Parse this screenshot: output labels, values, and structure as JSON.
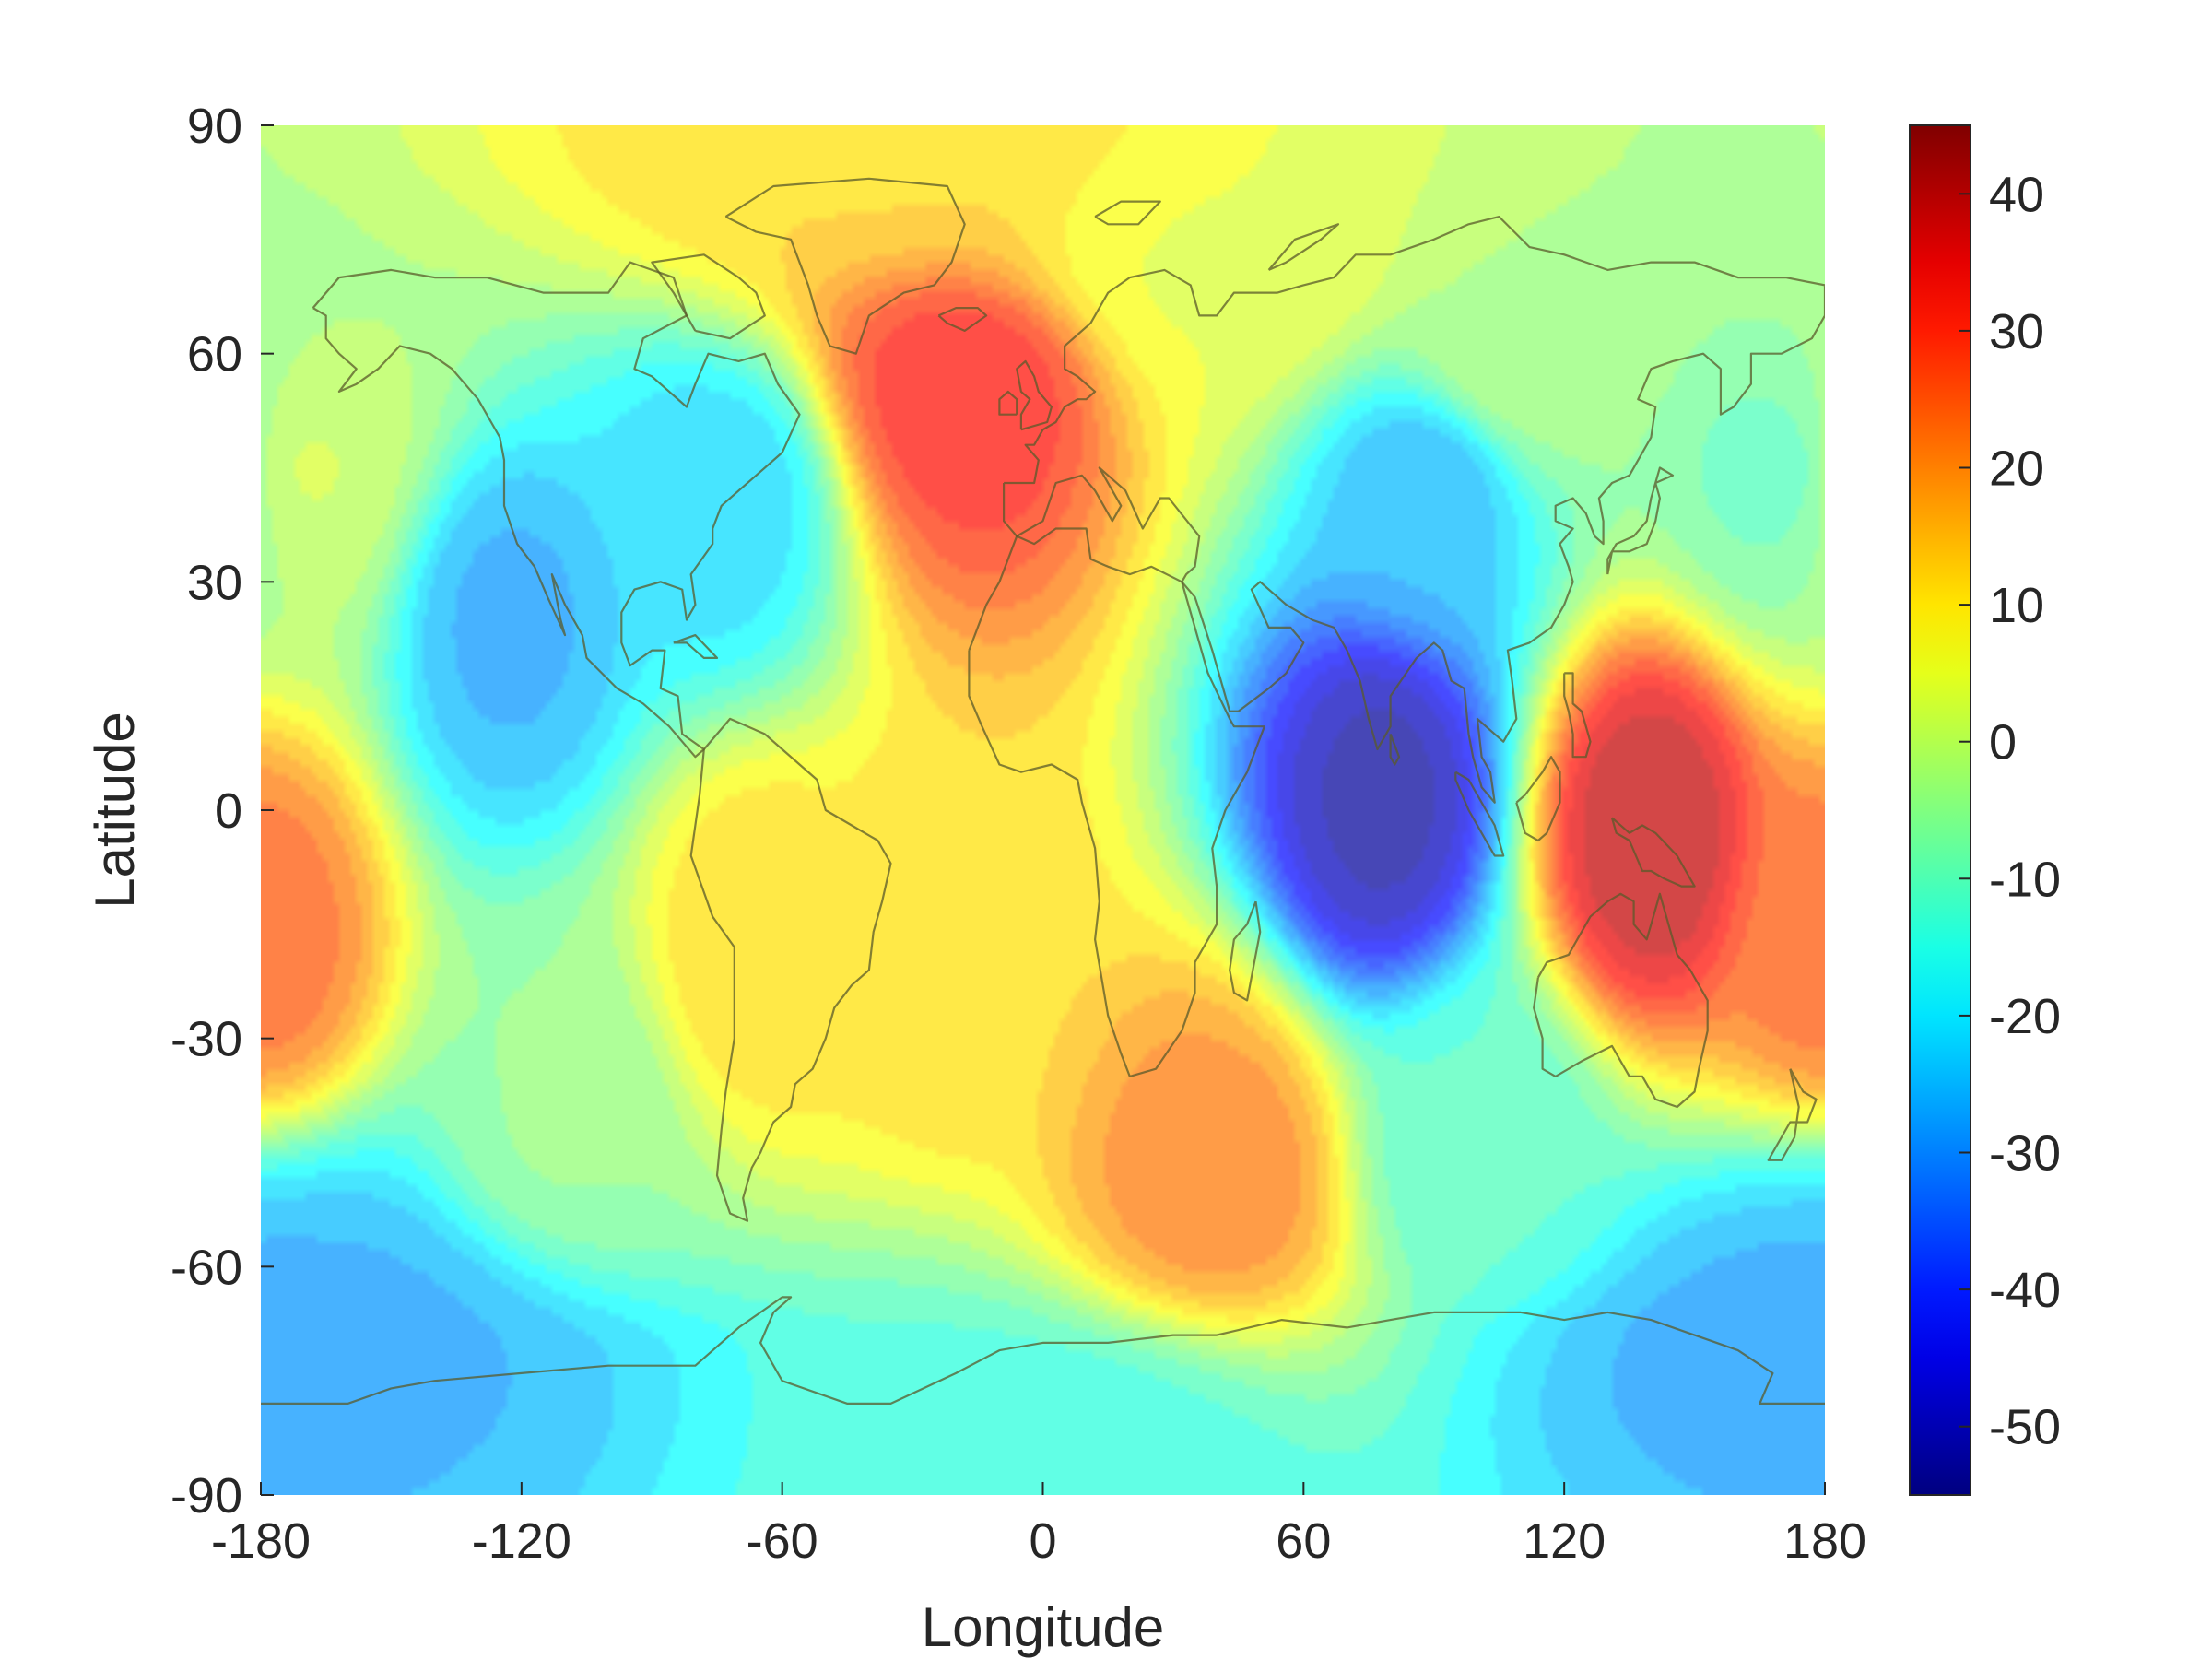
{
  "chart_data": {
    "type": "heatmap",
    "title": "",
    "xlabel": "Longitude",
    "ylabel": "Latitude",
    "xlim": [
      -180,
      180
    ],
    "ylim": [
      -90,
      90
    ],
    "x_ticks": [
      -180,
      -120,
      -60,
      0,
      60,
      120,
      180
    ],
    "y_ticks": [
      90,
      60,
      30,
      0,
      -30,
      -60,
      -90
    ],
    "colorbar": {
      "colormap": "jet",
      "range": [
        -55,
        45
      ],
      "ticks": [
        40,
        30,
        20,
        10,
        0,
        -10,
        -20,
        -30,
        -40,
        -50
      ]
    },
    "overlay": "world coastlines",
    "features": [
      {
        "lon": 78,
        "lat": 2,
        "value": -52
      },
      {
        "lon": 140,
        "lat": -3,
        "value": 40
      },
      {
        "lon": -18,
        "lat": 55,
        "value": 33
      },
      {
        "lon": 40,
        "lat": -48,
        "value": 22
      },
      {
        "lon": -180,
        "lat": -17,
        "value": 25
      },
      {
        "lon": -123,
        "lat": 25,
        "value": -27
      },
      {
        "lon": -75,
        "lat": 42,
        "value": -22
      },
      {
        "lon": 88,
        "lat": 42,
        "value": -26
      },
      {
        "lon": -160,
        "lat": -70,
        "value": -27
      },
      {
        "lon": 175,
        "lat": -72,
        "value": -28
      },
      {
        "lon": -66,
        "lat": -18,
        "value": 12
      },
      {
        "lon": 170,
        "lat": 45,
        "value": -10
      },
      {
        "lon": -170,
        "lat": 45,
        "value": 2
      },
      {
        "lon": -40,
        "lat": 88,
        "value": 12
      },
      {
        "lon": 0,
        "lat": -85,
        "value": -15
      },
      {
        "lon": -110,
        "lat": -40,
        "value": -5
      },
      {
        "lon": 100,
        "lat": -45,
        "value": -12
      },
      {
        "lon": -20,
        "lat": -20,
        "value": 12
      },
      {
        "lon": 110,
        "lat": 60,
        "value": -2
      },
      {
        "lon": 40,
        "lat": 70,
        "value": 5
      }
    ]
  }
}
